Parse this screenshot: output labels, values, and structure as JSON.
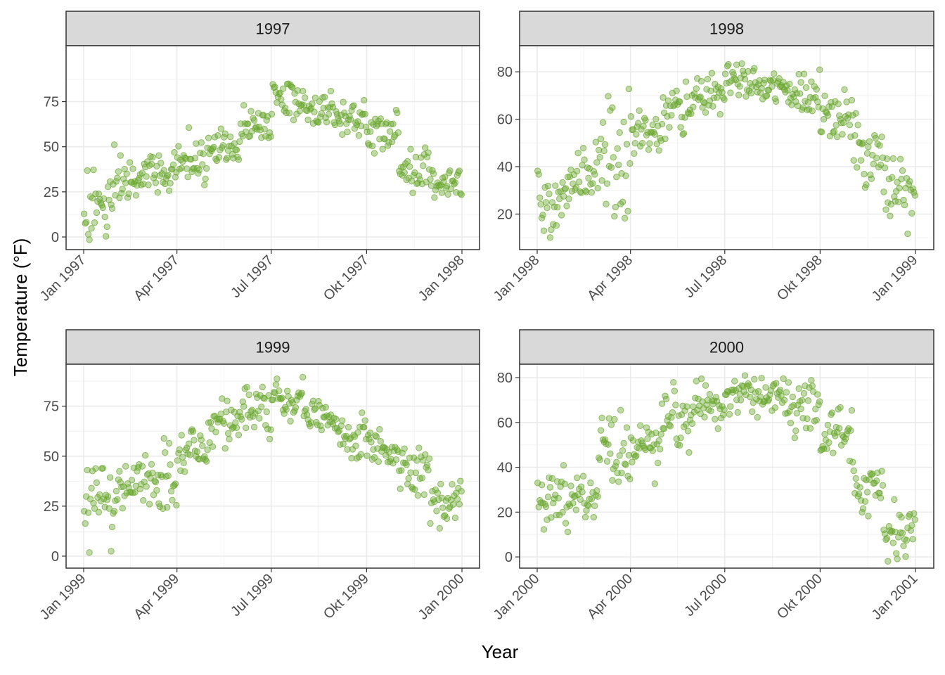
{
  "chart_data": {
    "type": "scatter",
    "xlabel": "Year",
    "ylabel": "Temperature (°F)",
    "grid": true,
    "point_color": "#6aa62e",
    "panels": [
      {
        "year": "1997",
        "strip_label": "1997",
        "x_ticks": [
          "Jan 1997",
          "Apr 1997",
          "Jul 1997",
          "Okt 1997",
          "Jan 1998"
        ],
        "y_ticks": [
          0,
          25,
          50,
          75
        ],
        "ylim": [
          -7,
          106
        ],
        "daily_temperature_approx": [
          {
            "month": "Jan",
            "min": -3,
            "max": 52,
            "typical": 17
          },
          {
            "month": "Feb",
            "min": 20,
            "max": 49,
            "typical": 31
          },
          {
            "month": "Mar",
            "min": 19,
            "max": 47,
            "typical": 36
          },
          {
            "month": "Apr",
            "min": 28,
            "max": 62,
            "typical": 42
          },
          {
            "month": "May",
            "min": 42,
            "max": 62,
            "typical": 50
          },
          {
            "month": "Jun",
            "min": 55,
            "max": 78,
            "typical": 62
          },
          {
            "month": "Jul",
            "min": 62,
            "max": 85,
            "typical": 75
          },
          {
            "month": "Aug",
            "min": 62,
            "max": 86,
            "typical": 71
          },
          {
            "month": "Sep",
            "min": 56,
            "max": 78,
            "typical": 67
          },
          {
            "month": "Okt",
            "min": 42,
            "max": 74,
            "typical": 57
          },
          {
            "month": "Nov",
            "min": 22,
            "max": 50,
            "typical": 37
          },
          {
            "month": "Dec",
            "min": 18,
            "max": 42,
            "typical": 31
          }
        ]
      },
      {
        "year": "1998",
        "strip_label": "1998",
        "x_ticks": [
          "Jan 1998",
          "Apr 1998",
          "Jul 1998",
          "Okt 1998",
          "Jan 1999"
        ],
        "y_ticks": [
          20,
          40,
          60,
          80
        ],
        "ylim": [
          5,
          91
        ],
        "daily_temperature_approx": [
          {
            "month": "Jan",
            "min": 7,
            "max": 48,
            "typical": 28
          },
          {
            "month": "Feb",
            "min": 28,
            "max": 54,
            "typical": 36
          },
          {
            "month": "Mar",
            "min": 18,
            "max": 73,
            "typical": 40
          },
          {
            "month": "Apr",
            "min": 40,
            "max": 64,
            "typical": 52
          },
          {
            "month": "May",
            "min": 50,
            "max": 79,
            "typical": 63
          },
          {
            "month": "Jun",
            "min": 62,
            "max": 80,
            "typical": 71
          },
          {
            "month": "Jul",
            "min": 68,
            "max": 85,
            "typical": 76
          },
          {
            "month": "Aug",
            "min": 67,
            "max": 81,
            "typical": 73
          },
          {
            "month": "Sep",
            "min": 63,
            "max": 81,
            "typical": 70
          },
          {
            "month": "Okt",
            "min": 47,
            "max": 79,
            "typical": 60
          },
          {
            "month": "Nov",
            "min": 31,
            "max": 63,
            "typical": 45
          },
          {
            "month": "Dec",
            "min": 7,
            "max": 44,
            "typical": 32
          }
        ]
      },
      {
        "year": "1999",
        "strip_label": "1999",
        "x_ticks": [
          "Jan 1999",
          "Apr 1999",
          "Jul 1999",
          "Okt 1999",
          "Jan 2000"
        ],
        "y_ticks": [
          0,
          25,
          50,
          75
        ],
        "ylim": [
          -6,
          96
        ],
        "daily_temperature_approx": [
          {
            "month": "Jan",
            "min": -2,
            "max": 44,
            "typical": 28
          },
          {
            "month": "Feb",
            "min": 22,
            "max": 49,
            "typical": 35
          },
          {
            "month": "Mar",
            "min": 22,
            "max": 60,
            "typical": 38
          },
          {
            "month": "Apr",
            "min": 42,
            "max": 70,
            "typical": 52
          },
          {
            "month": "May",
            "min": 53,
            "max": 82,
            "typical": 66
          },
          {
            "month": "Jun",
            "min": 57,
            "max": 85,
            "typical": 73
          },
          {
            "month": "Jul",
            "min": 67,
            "max": 90,
            "typical": 79
          },
          {
            "month": "Aug",
            "min": 62,
            "max": 80,
            "typical": 70
          },
          {
            "month": "Sep",
            "min": 48,
            "max": 72,
            "typical": 60
          },
          {
            "month": "Okt",
            "min": 42,
            "max": 67,
            "typical": 54
          },
          {
            "month": "Nov",
            "min": 30,
            "max": 62,
            "typical": 44
          },
          {
            "month": "Dec",
            "min": 8,
            "max": 40,
            "typical": 27
          }
        ]
      },
      {
        "year": "2000",
        "strip_label": "2000",
        "x_ticks": [
          "Jan 2000",
          "Apr 2000",
          "Jul 2000",
          "Okt 2000",
          "Jan 2001"
        ],
        "y_ticks": [
          0,
          20,
          40,
          60,
          80
        ],
        "ylim": [
          -5,
          86
        ],
        "daily_temperature_approx": [
          {
            "month": "Jan",
            "min": 5,
            "max": 48,
            "typical": 25
          },
          {
            "month": "Feb",
            "min": 17,
            "max": 41,
            "typical": 27
          },
          {
            "month": "Mar",
            "min": 33,
            "max": 67,
            "typical": 45
          },
          {
            "month": "Apr",
            "min": 31,
            "max": 60,
            "typical": 45
          },
          {
            "month": "May",
            "min": 46,
            "max": 78,
            "typical": 60
          },
          {
            "month": "Jun",
            "min": 55,
            "max": 80,
            "typical": 67
          },
          {
            "month": "Jul",
            "min": 62,
            "max": 81,
            "typical": 73
          },
          {
            "month": "Aug",
            "min": 61,
            "max": 82,
            "typical": 72
          },
          {
            "month": "Sep",
            "min": 51,
            "max": 80,
            "typical": 66
          },
          {
            "month": "Okt",
            "min": 39,
            "max": 67,
            "typical": 55
          },
          {
            "month": "Nov",
            "min": 17,
            "max": 50,
            "typical": 32
          },
          {
            "month": "Dec",
            "min": -2,
            "max": 27,
            "typical": 12
          }
        ]
      }
    ]
  }
}
